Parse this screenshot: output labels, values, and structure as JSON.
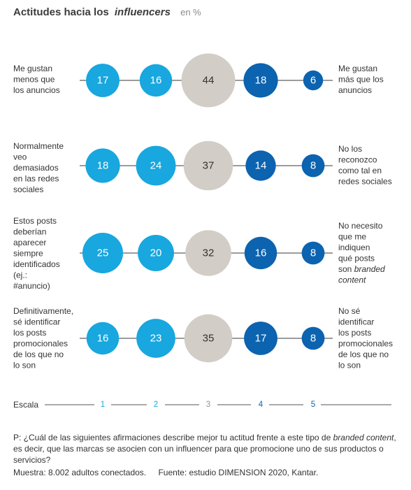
{
  "chart_data": {
    "type": "bubble-scale",
    "title": "Actitudes hacia los",
    "title_italic": "influencers",
    "unit": "en %",
    "scale_label": "Escala",
    "scale_points": [
      "1",
      "2",
      "3",
      "4",
      "5"
    ],
    "colors": [
      "#18a7df",
      "#18a7df",
      "#d2cdc6",
      "#0c63b0",
      "#0c63b0"
    ],
    "rows": [
      {
        "left_label": [
          "Me gustan",
          "menos que",
          "los anuncios"
        ],
        "right_label": [
          [
            "Me gustan"
          ],
          [
            "más que los"
          ],
          [
            "anuncios"
          ]
        ],
        "values": [
          17,
          16,
          44,
          18,
          6
        ]
      },
      {
        "left_label": [
          "Normalmente",
          "veo",
          "demasiados",
          "en las redes",
          "sociales"
        ],
        "right_label": [
          [
            "No los"
          ],
          [
            "reconozco"
          ],
          [
            "como tal en"
          ],
          [
            "redes sociales"
          ]
        ],
        "values": [
          18,
          24,
          37,
          14,
          8
        ]
      },
      {
        "left_label": [
          "Estos posts",
          "deberían",
          "aparecer",
          "siempre",
          "identificados",
          "(ej.:",
          "#anuncio)"
        ],
        "right_label": [
          [
            "No necesito"
          ],
          [
            "que me"
          ],
          [
            "indiquen"
          ],
          [
            "qué posts"
          ],
          [
            "son ",
            "branded"
          ],
          [
            "",
            "content"
          ]
        ],
        "values": [
          25,
          20,
          32,
          16,
          8
        ]
      },
      {
        "left_label": [
          "Definitivamente,",
          "sé identificar",
          "los posts",
          "promocionales",
          "de los que no",
          "lo son"
        ],
        "right_label": [
          [
            "No sé"
          ],
          [
            "identificar"
          ],
          [
            "los posts"
          ],
          [
            "promocionales"
          ],
          [
            "de los que no"
          ],
          [
            "lo son"
          ]
        ],
        "values": [
          16,
          23,
          35,
          17,
          8
        ]
      }
    ]
  },
  "footnote": {
    "question_prefix": "P: ¿Cuál de las siguientes afirmaciones describe mejor tu actitud frente a este tipo de",
    "question_italic": "branded content",
    "question_suffix": ", es decir, que las marcas se asocien con un influencer para que promocione uno de sus productos o servicios?",
    "sample": "Muestra: 8.002 adultos conectados.",
    "source": "Fuente: estudio DIMENSION 2020, Kantar."
  }
}
